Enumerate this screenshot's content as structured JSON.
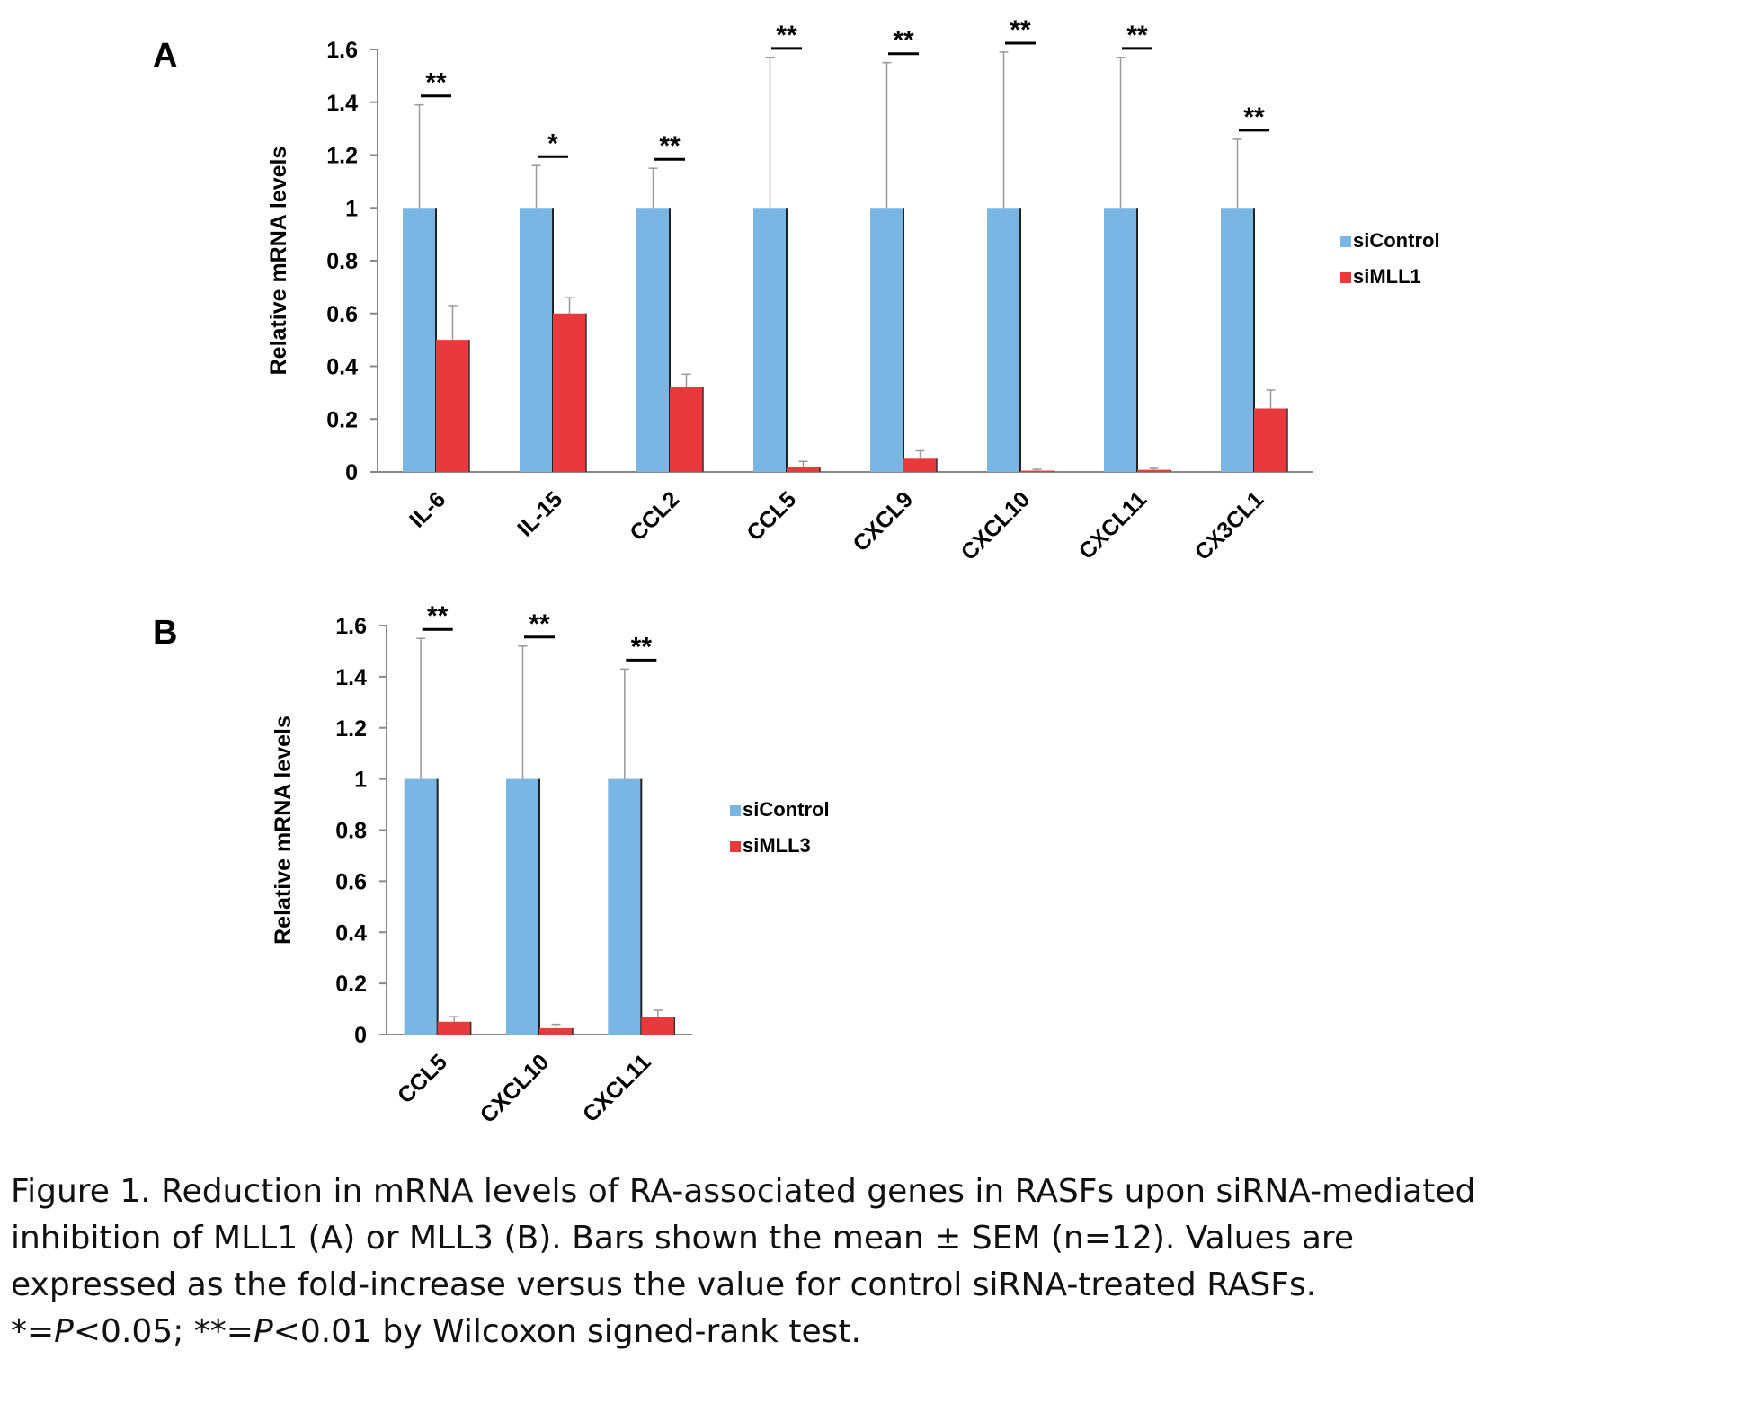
{
  "panels": [
    {
      "label": "A",
      "chart_data": {
        "type": "bar",
        "categories": [
          "IL-6",
          "IL-15",
          "CCL2",
          "CCL5",
          "CXCL9",
          "CXCL10",
          "CXCL11",
          "CX3CL1"
        ],
        "series": [
          {
            "name": "siControl",
            "values": [
              1,
              1,
              1,
              1,
              1,
              1,
              1,
              1
            ],
            "errors": [
              0.39,
              0.16,
              0.15,
              0.57,
              0.55,
              0.59,
              0.57,
              0.26
            ]
          },
          {
            "name": "siMLL1",
            "values": [
              0.5,
              0.6,
              0.32,
              0.02,
              0.05,
              0.005,
              0.008,
              0.24
            ],
            "errors": [
              0.13,
              0.06,
              0.05,
              0.02,
              0.03,
              0.005,
              0.006,
              0.07
            ]
          }
        ],
        "significance": [
          "**",
          "*",
          "**",
          "**",
          "**",
          "**",
          "**",
          "**"
        ],
        "xlabel": "",
        "ylabel": "Relative mRNA levels",
        "ylim": [
          0,
          1.6
        ],
        "yticks": [
          "0",
          "0.2",
          "0.4",
          "0.6",
          "0.8",
          "1",
          "1.2",
          "1.4",
          "1.6"
        ],
        "colors": {
          "siControl": "#7ab6e3",
          "siMLL1": "#e8393c"
        },
        "legend_position": "right",
        "grid": false
      }
    },
    {
      "label": "B",
      "chart_data": {
        "type": "bar",
        "categories": [
          "CCL5",
          "CXCL10",
          "CXCL11"
        ],
        "series": [
          {
            "name": "siControl",
            "values": [
              1,
              1,
              1
            ],
            "errors": [
              0.55,
              0.52,
              0.43
            ]
          },
          {
            "name": "siMLL3",
            "values": [
              0.05,
              0.025,
              0.07
            ],
            "errors": [
              0.02,
              0.015,
              0.025
            ]
          }
        ],
        "significance": [
          "**",
          "**",
          "**"
        ],
        "xlabel": "",
        "ylabel": "Relative mRNA levels",
        "ylim": [
          0,
          1.6
        ],
        "yticks": [
          "0",
          "0.2",
          "0.4",
          "0.6",
          "0.8",
          "1",
          "1.2",
          "1.4",
          "1.6"
        ],
        "colors": {
          "siControl": "#7ab6e3",
          "siMLL3": "#e8393c"
        },
        "legend_position": "right",
        "grid": false
      }
    }
  ],
  "caption": {
    "line1": "Figure 1. Reduction in mRNA levels of RA-associated genes in RASFs upon siRNA-mediated",
    "line2": "inhibition of MLL1 (A) or MLL3 (B). Bars shown the mean ± SEM (n=12). Values are",
    "line3": "expressed as the fold-increase versus the value for control siRNA-treated RASFs.",
    "line4_sig1": "*=",
    "line4_p1": "P",
    "line4_mid": "<0.05; **=",
    "line4_p2": "P",
    "line4_end": "<0.01 by Wilcoxon signed-rank test."
  }
}
